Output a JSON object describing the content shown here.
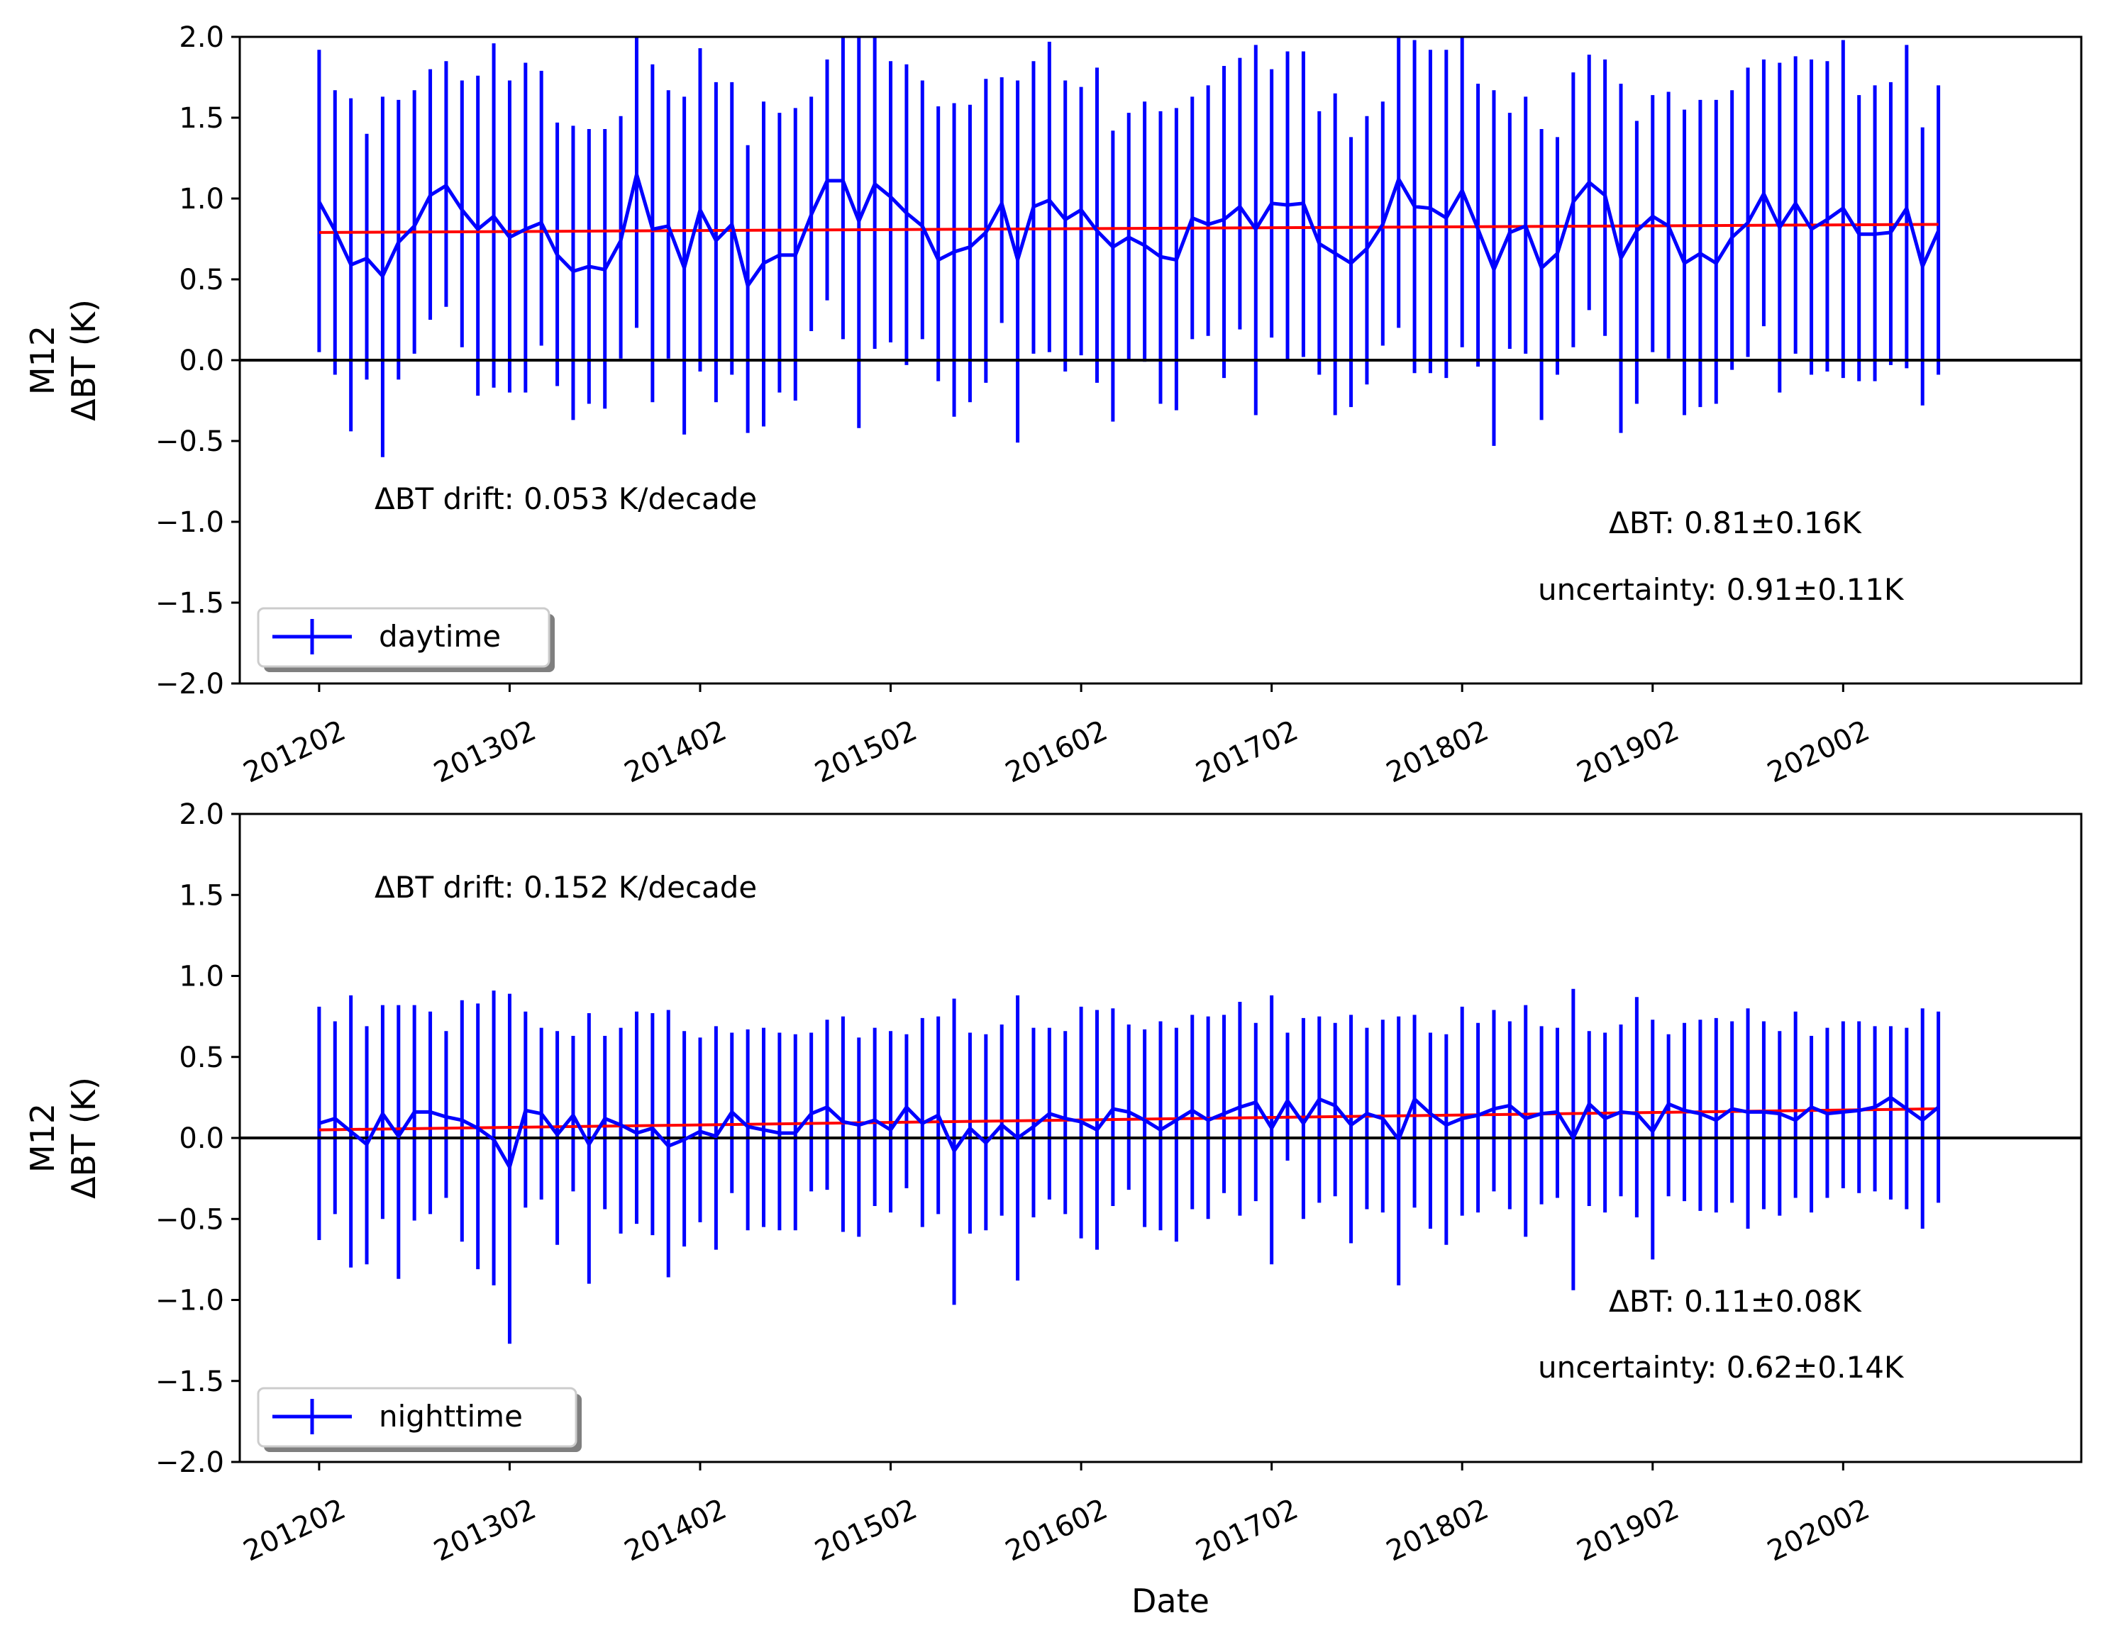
{
  "colors": {
    "series": "#0000ff",
    "trend": "#ff0000",
    "zero_line": "#000000"
  },
  "chart_data": [
    {
      "type": "line",
      "panel": "top",
      "xlabel": "",
      "ylabel_lines": [
        "M12",
        "ΔBT (K)"
      ],
      "ylim": [
        -2.0,
        2.0
      ],
      "yticks": [
        "2.0",
        "1.5",
        "1.0",
        "0.5",
        "0.0",
        "−0.5",
        "−1.0",
        "−1.5",
        "−2.0"
      ],
      "xlim": [
        -5,
        111
      ],
      "xticks": [
        {
          "idx": 0,
          "label": "201202"
        },
        {
          "idx": 12,
          "label": "201302"
        },
        {
          "idx": 24,
          "label": "201402"
        },
        {
          "idx": 36,
          "label": "201502"
        },
        {
          "idx": 48,
          "label": "201602"
        },
        {
          "idx": 60,
          "label": "201702"
        },
        {
          "idx": 72,
          "label": "201802"
        },
        {
          "idx": 84,
          "label": "201902"
        },
        {
          "idx": 96,
          "label": "202002"
        }
      ],
      "grid": false,
      "legend": {
        "label": "daytime",
        "placement": "lower-left"
      },
      "annotations": {
        "drift": "ΔBT drift: 0.053 K/decade",
        "mean": "ΔBT: 0.81±0.16K",
        "uncertainty": "uncertainty: 0.91±0.11K"
      },
      "series": [
        {
          "name": "daytime",
          "values": [
            0.98,
            0.8,
            0.59,
            0.63,
            0.52,
            0.73,
            0.83,
            1.02,
            1.08,
            0.93,
            0.81,
            0.89,
            0.76,
            0.81,
            0.85,
            0.65,
            0.55,
            0.58,
            0.56,
            0.74,
            1.15,
            0.81,
            0.83,
            0.57,
            0.93,
            0.74,
            0.84,
            0.46,
            0.6,
            0.65,
            0.65,
            0.9,
            1.11,
            1.11,
            0.86,
            1.09,
            1.01,
            0.91,
            0.83,
            0.62,
            0.67,
            0.7,
            0.79,
            0.97,
            0.62,
            0.95,
            0.99,
            0.87,
            0.93,
            0.8,
            0.7,
            0.76,
            0.71,
            0.64,
            0.62,
            0.88,
            0.84,
            0.87,
            0.95,
            0.81,
            0.97,
            0.96,
            0.97,
            0.72,
            0.66,
            0.6,
            0.69,
            0.84,
            1.12,
            0.95,
            0.94,
            0.88,
            1.05,
            0.81,
            0.56,
            0.79,
            0.83,
            0.57,
            0.66,
            0.98,
            1.1,
            1.02,
            0.63,
            0.8,
            0.89,
            0.83,
            0.6,
            0.66,
            0.6,
            0.76,
            0.85,
            1.03,
            0.82,
            0.97,
            0.81,
            0.87,
            0.94,
            0.78,
            0.78,
            0.79,
            0.94,
            0.58,
            0.8
          ],
          "err_low": [
            0.05,
            -0.09,
            -0.44,
            -0.12,
            -0.6,
            -0.12,
            0.04,
            0.25,
            0.33,
            0.08,
            -0.22,
            -0.17,
            -0.2,
            -0.2,
            0.09,
            -0.16,
            -0.37,
            -0.27,
            -0.3,
            0.01,
            0.2,
            -0.26,
            0.01,
            -0.46,
            -0.07,
            -0.26,
            -0.09,
            -0.45,
            -0.41,
            -0.2,
            -0.25,
            0.18,
            0.37,
            0.13,
            -0.42,
            0.07,
            0.11,
            -0.03,
            0.13,
            -0.13,
            -0.35,
            -0.26,
            -0.14,
            0.23,
            -0.51,
            0.04,
            0.05,
            -0.07,
            0.03,
            -0.14,
            -0.38,
            0.0,
            -0.01,
            -0.27,
            -0.31,
            0.13,
            0.15,
            -0.11,
            0.19,
            -0.34,
            0.14,
            0.0,
            0.02,
            -0.09,
            -0.34,
            -0.29,
            -0.15,
            0.09,
            0.2,
            -0.08,
            -0.08,
            -0.11,
            0.08,
            -0.04,
            -0.53,
            0.07,
            0.04,
            -0.37,
            -0.09,
            0.08,
            0.31,
            0.15,
            -0.45,
            -0.27,
            0.05,
            0.01,
            -0.34,
            -0.29,
            -0.27,
            -0.06,
            0.02,
            0.21,
            -0.2,
            0.04,
            -0.09,
            -0.07,
            -0.11,
            -0.13,
            -0.13,
            -0.03,
            -0.05,
            -0.28,
            -0.09
          ],
          "err_high": [
            1.92,
            1.67,
            1.62,
            1.4,
            1.63,
            1.61,
            1.67,
            1.8,
            1.85,
            1.73,
            1.76,
            1.96,
            1.73,
            1.84,
            1.79,
            1.47,
            1.45,
            1.43,
            1.43,
            1.51,
            2.02,
            1.83,
            1.67,
            1.63,
            1.93,
            1.72,
            1.72,
            1.33,
            1.6,
            1.53,
            1.56,
            1.63,
            1.86,
            2.04,
            2.12,
            2.03,
            1.85,
            1.83,
            1.73,
            1.57,
            1.59,
            1.58,
            1.74,
            1.75,
            1.73,
            1.85,
            1.97,
            1.73,
            1.69,
            1.81,
            1.42,
            1.53,
            1.6,
            1.54,
            1.56,
            1.63,
            1.7,
            1.82,
            1.87,
            1.95,
            1.8,
            1.91,
            1.91,
            1.54,
            1.65,
            1.38,
            1.51,
            1.6,
            2.02,
            1.98,
            1.92,
            1.92,
            2.03,
            1.71,
            1.67,
            1.53,
            1.63,
            1.43,
            1.38,
            1.78,
            1.89,
            1.86,
            1.71,
            1.48,
            1.64,
            1.66,
            1.55,
            1.61,
            1.61,
            1.67,
            1.81,
            1.86,
            1.84,
            1.88,
            1.86,
            1.85,
            1.98,
            1.64,
            1.7,
            1.72,
            1.95,
            1.44,
            1.7
          ]
        },
        {
          "name": "trend",
          "values": [
            0.79,
            0.84
          ]
        }
      ]
    },
    {
      "type": "line",
      "panel": "bottom",
      "xlabel": "Date",
      "ylabel_lines": [
        "M12",
        "ΔBT (K)"
      ],
      "ylim": [
        -2.0,
        2.0
      ],
      "yticks": [
        "2.0",
        "1.5",
        "1.0",
        "0.5",
        "0.0",
        "−0.5",
        "−1.0",
        "−1.5",
        "−2.0"
      ],
      "xlim": [
        -5,
        111
      ],
      "xticks": [
        {
          "idx": 0,
          "label": "201202"
        },
        {
          "idx": 12,
          "label": "201302"
        },
        {
          "idx": 24,
          "label": "201402"
        },
        {
          "idx": 36,
          "label": "201502"
        },
        {
          "idx": 48,
          "label": "201602"
        },
        {
          "idx": 60,
          "label": "201702"
        },
        {
          "idx": 72,
          "label": "201802"
        },
        {
          "idx": 84,
          "label": "201902"
        },
        {
          "idx": 96,
          "label": "202002"
        }
      ],
      "grid": false,
      "legend": {
        "label": "nighttime",
        "placement": "lower-left"
      },
      "annotations": {
        "drift": "ΔBT drift: 0.152 K/decade",
        "mean": "ΔBT: 0.11±0.08K",
        "uncertainty": "uncertainty: 0.62±0.14K"
      },
      "series": [
        {
          "name": "nighttime",
          "values": [
            0.09,
            0.12,
            0.04,
            -0.04,
            0.15,
            0.01,
            0.16,
            0.16,
            0.13,
            0.11,
            0.06,
            -0.01,
            -0.18,
            0.17,
            0.15,
            0.02,
            0.14,
            -0.04,
            0.12,
            0.08,
            0.03,
            0.06,
            -0.05,
            -0.01,
            0.04,
            0.01,
            0.16,
            0.07,
            0.05,
            0.03,
            0.03,
            0.15,
            0.19,
            0.1,
            0.08,
            0.11,
            0.05,
            0.19,
            0.09,
            0.14,
            -0.08,
            0.06,
            -0.03,
            0.08,
            0.0,
            0.07,
            0.15,
            0.12,
            0.1,
            0.05,
            0.18,
            0.16,
            0.11,
            0.05,
            0.11,
            0.17,
            0.11,
            0.15,
            0.19,
            0.22,
            0.06,
            0.23,
            0.09,
            0.24,
            0.2,
            0.08,
            0.15,
            0.12,
            -0.01,
            0.24,
            0.15,
            0.08,
            0.12,
            0.14,
            0.18,
            0.2,
            0.12,
            0.15,
            0.16,
            0.0,
            0.21,
            0.12,
            0.16,
            0.15,
            0.04,
            0.21,
            0.17,
            0.15,
            0.11,
            0.18,
            0.16,
            0.16,
            0.15,
            0.11,
            0.19,
            0.15,
            0.16,
            0.17,
            0.19,
            0.25,
            0.18,
            0.11,
            0.19
          ],
          "err_low": [
            -0.63,
            -0.47,
            -0.8,
            -0.78,
            -0.5,
            -0.87,
            -0.51,
            -0.47,
            -0.37,
            -0.64,
            -0.81,
            -0.91,
            -1.27,
            -0.43,
            -0.38,
            -0.66,
            -0.33,
            -0.9,
            -0.44,
            -0.59,
            -0.53,
            -0.6,
            -0.86,
            -0.67,
            -0.52,
            -0.69,
            -0.34,
            -0.57,
            -0.55,
            -0.57,
            -0.57,
            -0.33,
            -0.32,
            -0.58,
            -0.61,
            -0.42,
            -0.46,
            -0.31,
            -0.55,
            -0.47,
            -1.03,
            -0.59,
            -0.57,
            -0.48,
            -0.88,
            -0.49,
            -0.38,
            -0.47,
            -0.62,
            -0.69,
            -0.42,
            -0.32,
            -0.55,
            -0.57,
            -0.64,
            -0.44,
            -0.5,
            -0.34,
            -0.48,
            -0.39,
            -0.78,
            -0.14,
            -0.5,
            -0.4,
            -0.36,
            -0.65,
            -0.44,
            -0.46,
            -0.91,
            -0.43,
            -0.56,
            -0.66,
            -0.48,
            -0.46,
            -0.33,
            -0.44,
            -0.61,
            -0.41,
            -0.37,
            -0.94,
            -0.42,
            -0.46,
            -0.36,
            -0.49,
            -0.75,
            -0.36,
            -0.39,
            -0.45,
            -0.46,
            -0.4,
            -0.56,
            -0.44,
            -0.48,
            -0.37,
            -0.46,
            -0.37,
            -0.31,
            -0.34,
            -0.33,
            -0.38,
            -0.44,
            -0.56,
            -0.4
          ],
          "err_high": [
            0.81,
            0.72,
            0.88,
            0.69,
            0.82,
            0.82,
            0.82,
            0.78,
            0.66,
            0.85,
            0.83,
            0.91,
            0.89,
            0.78,
            0.68,
            0.66,
            0.63,
            0.77,
            0.63,
            0.68,
            0.78,
            0.77,
            0.79,
            0.66,
            0.62,
            0.69,
            0.65,
            0.67,
            0.68,
            0.65,
            0.64,
            0.65,
            0.73,
            0.75,
            0.62,
            0.68,
            0.66,
            0.64,
            0.74,
            0.75,
            0.86,
            0.65,
            0.64,
            0.7,
            0.88,
            0.68,
            0.68,
            0.66,
            0.81,
            0.79,
            0.8,
            0.7,
            0.67,
            0.72,
            0.68,
            0.76,
            0.75,
            0.76,
            0.84,
            0.71,
            0.88,
            0.65,
            0.74,
            0.75,
            0.71,
            0.76,
            0.68,
            0.73,
            0.75,
            0.76,
            0.65,
            0.64,
            0.81,
            0.71,
            0.79,
            0.72,
            0.82,
            0.69,
            0.68,
            0.92,
            0.66,
            0.65,
            0.7,
            0.87,
            0.73,
            0.64,
            0.71,
            0.73,
            0.74,
            0.72,
            0.8,
            0.72,
            0.66,
            0.78,
            0.63,
            0.68,
            0.72,
            0.72,
            0.69,
            0.69,
            0.68,
            0.8,
            0.78
          ]
        },
        {
          "name": "trend",
          "values": [
            0.05,
            0.18
          ]
        }
      ]
    }
  ]
}
